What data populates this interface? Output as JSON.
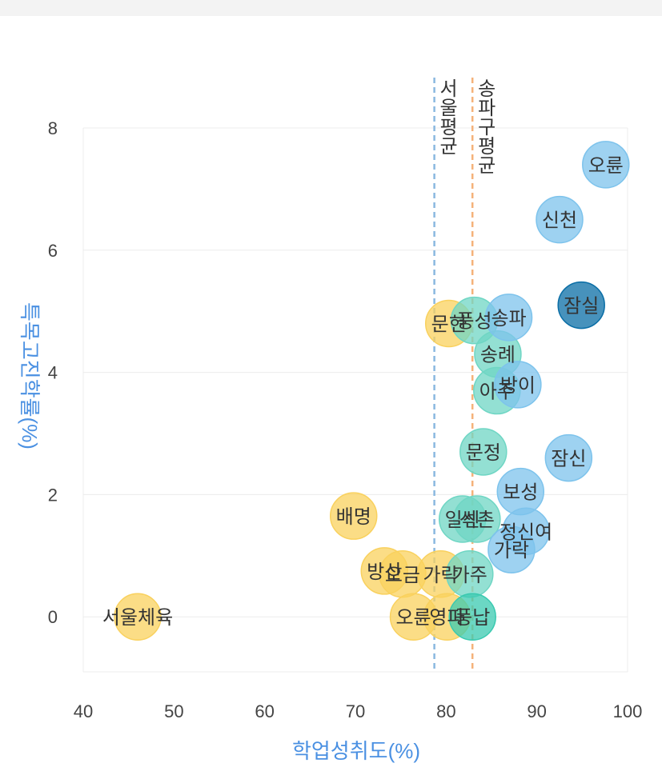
{
  "chart_data": {
    "type": "scatter",
    "xlabel": "학업성취도(%)",
    "ylabel": "특목고진학률(%)",
    "xlim": [
      40,
      100
    ],
    "ylim": [
      -0.9,
      8
    ],
    "x_ticks": [
      "40",
      "50",
      "60",
      "70",
      "80",
      "90",
      "100"
    ],
    "y_ticks": [
      "0",
      "2",
      "4",
      "6",
      "8"
    ],
    "grid": true,
    "reference_lines": [
      {
        "label": "서울평균",
        "x": 78.7,
        "color": "#8ab8e0"
      },
      {
        "label": "송파구평균",
        "x": 82.9,
        "color": "#f5b27a"
      }
    ],
    "points": [
      {
        "label": "서울체육",
        "x": 46,
        "y": 0,
        "color": "#f9d15e"
      },
      {
        "label": "배명",
        "x": 69.8,
        "y": 1.65,
        "color": "#f9d15e"
      },
      {
        "label": "방산",
        "x": 73.2,
        "y": 0.75,
        "color": "#f9d15e"
      },
      {
        "label": "오금",
        "x": 75.2,
        "y": 0.7,
        "color": "#f9d15e"
      },
      {
        "label": "오륜",
        "x": 76.4,
        "y": 0,
        "color": "#f9d15e"
      },
      {
        "label": "가락",
        "x": 79.4,
        "y": 0.7,
        "color": "#f9d15e"
      },
      {
        "label": "영파",
        "x": 80.1,
        "y": 0,
        "color": "#f9d15e"
      },
      {
        "label": "문현",
        "x": 80.3,
        "y": 4.8,
        "color": "#f9d15e"
      },
      {
        "label": "일신",
        "x": 81.8,
        "y": 1.6,
        "color": "#6fd6c4"
      },
      {
        "label": "석촌",
        "x": 83.4,
        "y": 1.6,
        "color": "#6fd6c4"
      },
      {
        "label": "가주",
        "x": 82.6,
        "y": 0.7,
        "color": "#6fd6c4"
      },
      {
        "label": "풍납",
        "x": 82.9,
        "y": 0,
        "color": "#39c9b0"
      },
      {
        "label": "풍성",
        "x": 83.1,
        "y": 4.85,
        "color": "#6fd6c4"
      },
      {
        "label": "문정",
        "x": 84.1,
        "y": 2.7,
        "color": "#6fd6c4"
      },
      {
        "label": "송례",
        "x": 85.7,
        "y": 4.3,
        "color": "#6fd6c4"
      },
      {
        "label": "아주",
        "x": 85.6,
        "y": 3.7,
        "color": "#6fd6c4"
      },
      {
        "label": "송파",
        "x": 86.9,
        "y": 4.9,
        "color": "#7dc3ec"
      },
      {
        "label": "방이",
        "x": 87.9,
        "y": 3.8,
        "color": "#7dc3ec"
      },
      {
        "label": "보성",
        "x": 88.2,
        "y": 2.05,
        "color": "#7dc3ec"
      },
      {
        "label": "가락",
        "x": 87.2,
        "y": 1.1,
        "color": "#7dc3ec"
      },
      {
        "label": "정신여",
        "x": 88.8,
        "y": 1.4,
        "color": "#7dc3ec"
      },
      {
        "label": "잠신",
        "x": 93.5,
        "y": 2.6,
        "color": "#7dc3ec"
      },
      {
        "label": "신천",
        "x": 92.5,
        "y": 6.5,
        "color": "#7dc3ec"
      },
      {
        "label": "잠실",
        "x": 94.9,
        "y": 5.1,
        "color": "#0a6ea6"
      },
      {
        "label": "오륜",
        "x": 97.6,
        "y": 7.4,
        "color": "#7dc3ec"
      }
    ]
  }
}
